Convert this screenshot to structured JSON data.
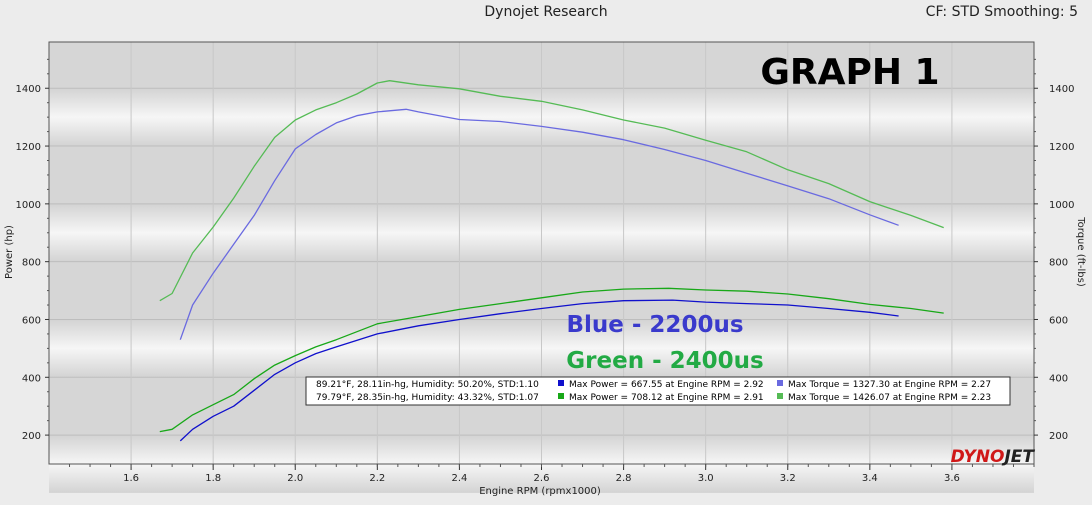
{
  "header": {
    "title": "Dynojet Research",
    "cf_smoothing": "CF: STD Smoothing: 5"
  },
  "annotations": {
    "graph_label": "GRAPH 1",
    "blue_note": "Blue - 2200us",
    "green_note": "Green - 2400us"
  },
  "legend": {
    "rows": [
      {
        "conditions": "89.21°F, 28.11in-hg, Humidity: 50.20%, STD:1.10",
        "power": "Max Power = 667.55 at Engine RPM = 2.92",
        "torque": "Max Torque = 1327.30 at Engine RPM = 2.27",
        "power_color": "#1010cc",
        "torque_color": "#6a6ae0"
      },
      {
        "conditions": "79.79°F, 28.35in-hg, Humidity: 43.32%, STD:1.07",
        "power": "Max Power = 708.12 at Engine RPM = 2.91",
        "torque": "Max Torque = 1426.07 at Engine RPM = 2.23",
        "power_color": "#18a818",
        "torque_color": "#55bb55"
      }
    ]
  },
  "logo": {
    "text_a": "DYNO",
    "text_b": "JET",
    "color_a": "#d01818",
    "color_b": "#222222"
  },
  "chart_data": {
    "type": "line",
    "xlabel": "Engine RPM (rpmx1000)",
    "ylabel_left": "Power (hp)",
    "ylabel_right": "Torque (ft-lbs)",
    "xlim": [
      1.4,
      3.8
    ],
    "ylim": [
      100,
      1560
    ],
    "x_ticks": [
      1.6,
      1.8,
      2.0,
      2.2,
      2.4,
      2.6,
      2.8,
      3.0,
      3.2,
      3.4,
      3.6
    ],
    "y_ticks": [
      200,
      400,
      600,
      800,
      1000,
      1200,
      1400
    ],
    "grid": true,
    "colors": {
      "blue": "#1010cc",
      "blue_light": "#6a6ae0",
      "green": "#18a818",
      "green_light": "#55bb55"
    },
    "series": [
      {
        "name": "Max Power = 667.55 at Engine RPM = 2.92",
        "axis": "power",
        "color": "#1010cc",
        "x": [
          1.72,
          1.75,
          1.8,
          1.85,
          1.9,
          1.95,
          2.0,
          2.05,
          2.1,
          2.2,
          2.3,
          2.4,
          2.5,
          2.6,
          2.7,
          2.8,
          2.92,
          3.0,
          3.1,
          3.2,
          3.3,
          3.4,
          3.47
        ],
        "values": [
          180,
          220,
          265,
          300,
          355,
          410,
          450,
          482,
          505,
          550,
          578,
          600,
          620,
          638,
          655,
          665,
          667,
          660,
          655,
          650,
          638,
          625,
          612
        ]
      },
      {
        "name": "Max Torque = 1327.30 at Engine RPM = 2.27",
        "axis": "torque",
        "color": "#6a6ae0",
        "x": [
          1.72,
          1.75,
          1.8,
          1.85,
          1.9,
          1.95,
          2.0,
          2.05,
          2.1,
          2.15,
          2.2,
          2.27,
          2.3,
          2.4,
          2.5,
          2.6,
          2.7,
          2.8,
          2.9,
          3.0,
          3.1,
          3.2,
          3.3,
          3.4,
          3.47
        ],
        "values": [
          530,
          650,
          760,
          860,
          960,
          1080,
          1190,
          1240,
          1280,
          1305,
          1318,
          1327,
          1318,
          1292,
          1285,
          1268,
          1248,
          1222,
          1188,
          1150,
          1106,
          1062,
          1018,
          962,
          926
        ]
      },
      {
        "name": "Max Power = 708.12 at Engine RPM = 2.91",
        "axis": "power",
        "color": "#18a818",
        "x": [
          1.67,
          1.7,
          1.75,
          1.8,
          1.85,
          1.9,
          1.95,
          2.0,
          2.05,
          2.1,
          2.2,
          2.3,
          2.4,
          2.5,
          2.6,
          2.7,
          2.8,
          2.91,
          3.0,
          3.1,
          3.2,
          3.3,
          3.4,
          3.5,
          3.58
        ],
        "values": [
          212,
          220,
          270,
          305,
          340,
          395,
          442,
          475,
          505,
          530,
          585,
          610,
          635,
          655,
          675,
          695,
          705,
          708,
          702,
          698,
          688,
          672,
          652,
          638,
          622
        ]
      },
      {
        "name": "Max Torque = 1426.07 at Engine RPM = 2.23",
        "axis": "torque",
        "color": "#55bb55",
        "x": [
          1.67,
          1.7,
          1.75,
          1.8,
          1.85,
          1.9,
          1.95,
          2.0,
          2.05,
          2.1,
          2.15,
          2.2,
          2.23,
          2.3,
          2.4,
          2.5,
          2.6,
          2.7,
          2.8,
          2.9,
          3.0,
          3.1,
          3.2,
          3.3,
          3.4,
          3.5,
          3.58
        ],
        "values": [
          665,
          690,
          830,
          920,
          1020,
          1130,
          1230,
          1290,
          1325,
          1350,
          1380,
          1418,
          1426,
          1412,
          1398,
          1372,
          1355,
          1325,
          1290,
          1262,
          1220,
          1180,
          1118,
          1070,
          1008,
          960,
          918
        ]
      }
    ]
  }
}
